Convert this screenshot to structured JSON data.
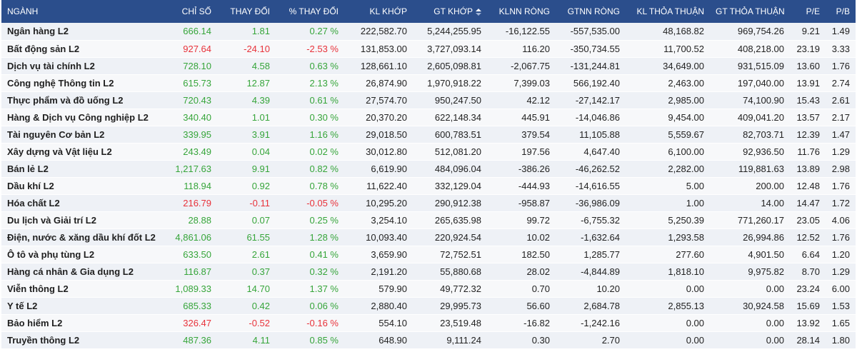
{
  "table": {
    "columns": [
      "NGÀNH",
      "CHỈ SỐ",
      "THAY ĐỔI",
      "% THAY ĐỔI",
      "KL KHỚP",
      "GT KHỚP",
      "KLNN RÒNG",
      "GTNN RÒNG",
      "KL THỎA THUẬN",
      "GT THỎA THUẬN",
      "P/E",
      "P/B"
    ],
    "sorted_column": "GT KHỚP",
    "sort_icon": "sort-icon",
    "colors": {
      "header_bg": "#2b4e8c",
      "up": "#36a53a",
      "down": "#e8323a"
    },
    "rows": [
      {
        "name": "Ngân hàng L2",
        "index": "666.14",
        "change": "1.81",
        "pct": "0.27 %",
        "kl_khop": "222,582.70",
        "gt_khop": "5,244,255.95",
        "klnn": "-16,122.55",
        "gtnn": "-557,535.00",
        "kl_tt": "48,168.82",
        "gt_tt": "969,754.26",
        "pe": "9.21",
        "pb": "1.49",
        "trend": "up"
      },
      {
        "name": "Bất động sản L2",
        "index": "927.64",
        "change": "-24.10",
        "pct": "-2.53 %",
        "kl_khop": "131,853.00",
        "gt_khop": "3,727,093.14",
        "klnn": "116.20",
        "gtnn": "-350,734.55",
        "kl_tt": "11,700.52",
        "gt_tt": "408,218.00",
        "pe": "23.19",
        "pb": "3.33",
        "trend": "down"
      },
      {
        "name": "Dịch vụ tài chính L2",
        "index": "728.10",
        "change": "4.58",
        "pct": "0.63 %",
        "kl_khop": "128,661.10",
        "gt_khop": "2,605,098.81",
        "klnn": "-2,067.75",
        "gtnn": "-131,244.81",
        "kl_tt": "34,649.00",
        "gt_tt": "931,515.09",
        "pe": "13.60",
        "pb": "1.76",
        "trend": "up"
      },
      {
        "name": "Công nghệ Thông tin L2",
        "index": "615.73",
        "change": "12.87",
        "pct": "2.13 %",
        "kl_khop": "26,874.90",
        "gt_khop": "1,970,918.22",
        "klnn": "7,399.03",
        "gtnn": "566,192.40",
        "kl_tt": "2,463.00",
        "gt_tt": "197,040.00",
        "pe": "13.91",
        "pb": "2.74",
        "trend": "up"
      },
      {
        "name": "Thực phẩm và đồ uống L2",
        "index": "720.43",
        "change": "4.39",
        "pct": "0.61 %",
        "kl_khop": "27,574.70",
        "gt_khop": "950,247.50",
        "klnn": "42.12",
        "gtnn": "-27,142.17",
        "kl_tt": "2,985.00",
        "gt_tt": "74,100.90",
        "pe": "15.43",
        "pb": "2.61",
        "trend": "up"
      },
      {
        "name": "Hàng & Dịch vụ Công nghiệp L2",
        "index": "340.40",
        "change": "1.01",
        "pct": "0.30 %",
        "kl_khop": "20,370.20",
        "gt_khop": "622,148.34",
        "klnn": "445.91",
        "gtnn": "-14,046.86",
        "kl_tt": "9,454.00",
        "gt_tt": "409,041.20",
        "pe": "13.57",
        "pb": "2.17",
        "trend": "up"
      },
      {
        "name": "Tài nguyên Cơ bản L2",
        "index": "339.95",
        "change": "3.91",
        "pct": "1.16 %",
        "kl_khop": "29,018.50",
        "gt_khop": "600,783.51",
        "klnn": "379.54",
        "gtnn": "11,105.88",
        "kl_tt": "5,559.67",
        "gt_tt": "82,703.71",
        "pe": "12.39",
        "pb": "1.47",
        "trend": "up"
      },
      {
        "name": "Xây dựng và Vật liệu L2",
        "index": "243.49",
        "change": "0.04",
        "pct": "0.02 %",
        "kl_khop": "30,012.80",
        "gt_khop": "512,081.20",
        "klnn": "197.56",
        "gtnn": "4,647.40",
        "kl_tt": "6,100.00",
        "gt_tt": "92,936.50",
        "pe": "11.76",
        "pb": "1.29",
        "trend": "up"
      },
      {
        "name": "Bán lẻ L2",
        "index": "1,217.63",
        "change": "9.91",
        "pct": "0.82 %",
        "kl_khop": "6,619.90",
        "gt_khop": "484,096.04",
        "klnn": "-386.26",
        "gtnn": "-46,262.52",
        "kl_tt": "2,282.00",
        "gt_tt": "119,881.63",
        "pe": "13.89",
        "pb": "2.98",
        "trend": "up"
      },
      {
        "name": "Dầu khí L2",
        "index": "118.94",
        "change": "0.92",
        "pct": "0.78 %",
        "kl_khop": "11,622.40",
        "gt_khop": "332,129.04",
        "klnn": "-444.93",
        "gtnn": "-14,616.55",
        "kl_tt": "5.00",
        "gt_tt": "200.00",
        "pe": "12.48",
        "pb": "1.76",
        "trend": "up"
      },
      {
        "name": "Hóa chất L2",
        "index": "216.79",
        "change": "-0.11",
        "pct": "-0.05 %",
        "kl_khop": "10,295.20",
        "gt_khop": "290,912.38",
        "klnn": "-958.87",
        "gtnn": "-36,986.09",
        "kl_tt": "1.00",
        "gt_tt": "14.00",
        "pe": "14.47",
        "pb": "1.72",
        "trend": "down"
      },
      {
        "name": "Du lịch và Giải trí L2",
        "index": "28.88",
        "change": "0.07",
        "pct": "0.25 %",
        "kl_khop": "3,254.10",
        "gt_khop": "265,635.98",
        "klnn": "99.72",
        "gtnn": "-6,755.32",
        "kl_tt": "5,250.39",
        "gt_tt": "771,260.17",
        "pe": "23.05",
        "pb": "4.06",
        "trend": "up"
      },
      {
        "name": "Điện, nước & xăng dầu khí đốt L2",
        "index": "4,861.06",
        "change": "61.55",
        "pct": "1.28 %",
        "kl_khop": "10,093.40",
        "gt_khop": "220,924.54",
        "klnn": "10.02",
        "gtnn": "-1,632.64",
        "kl_tt": "1,293.58",
        "gt_tt": "26,994.86",
        "pe": "12.52",
        "pb": "1.76",
        "trend": "up"
      },
      {
        "name": "Ô tô và phụ tùng L2",
        "index": "633.50",
        "change": "2.61",
        "pct": "0.41 %",
        "kl_khop": "3,659.90",
        "gt_khop": "72,752.51",
        "klnn": "182.50",
        "gtnn": "1,285.77",
        "kl_tt": "277.60",
        "gt_tt": "4,901.50",
        "pe": "6.64",
        "pb": "1.20",
        "trend": "up"
      },
      {
        "name": "Hàng cá nhân & Gia dụng L2",
        "index": "116.87",
        "change": "0.37",
        "pct": "0.32 %",
        "kl_khop": "2,191.20",
        "gt_khop": "55,880.68",
        "klnn": "28.02",
        "gtnn": "-4,844.89",
        "kl_tt": "1,818.10",
        "gt_tt": "9,975.82",
        "pe": "8.70",
        "pb": "1.29",
        "trend": "up"
      },
      {
        "name": "Viễn thông L2",
        "index": "1,089.33",
        "change": "14.70",
        "pct": "1.37 %",
        "kl_khop": "579.90",
        "gt_khop": "49,772.32",
        "klnn": "0.70",
        "gtnn": "10.20",
        "kl_tt": "0.00",
        "gt_tt": "0.00",
        "pe": "23.24",
        "pb": "6.00",
        "trend": "up"
      },
      {
        "name": "Y tế L2",
        "index": "685.33",
        "change": "0.42",
        "pct": "0.06 %",
        "kl_khop": "2,880.40",
        "gt_khop": "29,995.73",
        "klnn": "56.60",
        "gtnn": "2,684.78",
        "kl_tt": "2,855.13",
        "gt_tt": "30,924.58",
        "pe": "15.69",
        "pb": "1.53",
        "trend": "up"
      },
      {
        "name": "Bảo hiểm L2",
        "index": "326.47",
        "change": "-0.52",
        "pct": "-0.16 %",
        "kl_khop": "554.10",
        "gt_khop": "23,519.48",
        "klnn": "-16.82",
        "gtnn": "-1,242.16",
        "kl_tt": "0.00",
        "gt_tt": "0.00",
        "pe": "13.92",
        "pb": "1.65",
        "trend": "down"
      },
      {
        "name": "Truyền thông L2",
        "index": "487.36",
        "change": "4.11",
        "pct": "0.85 %",
        "kl_khop": "648.90",
        "gt_khop": "9,111.24",
        "klnn": "0.30",
        "gtnn": "2.70",
        "kl_tt": "0.00",
        "gt_tt": "0.00",
        "pe": "28.14",
        "pb": "1.80",
        "trend": "up"
      }
    ]
  }
}
